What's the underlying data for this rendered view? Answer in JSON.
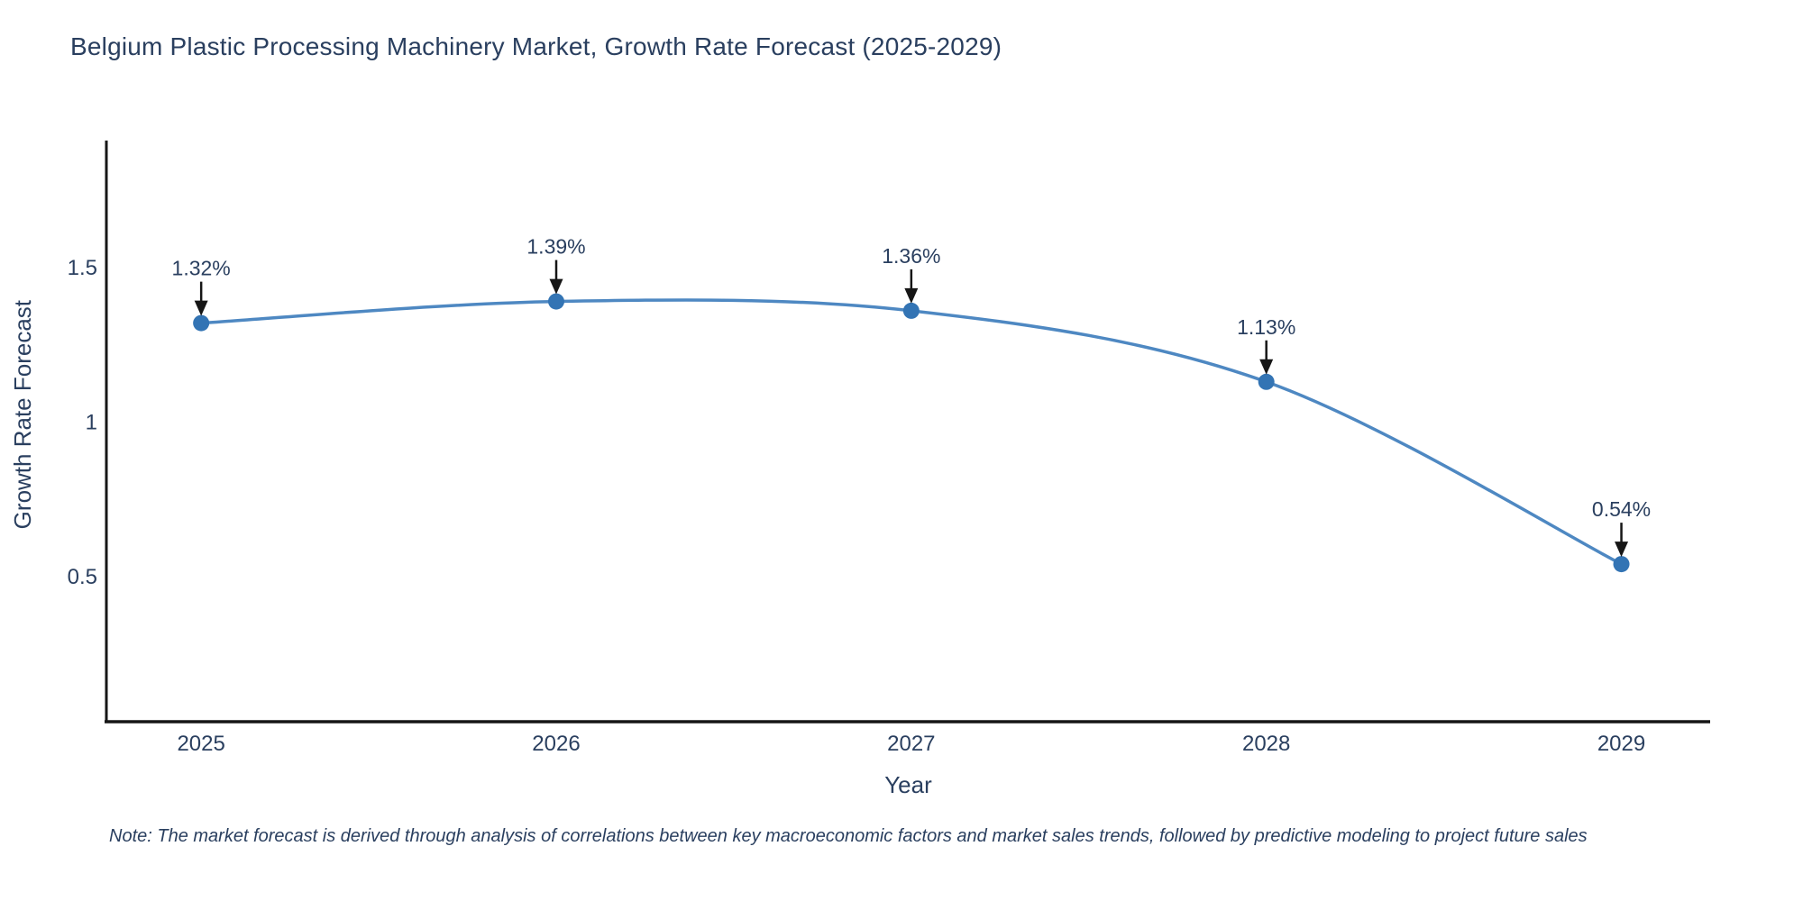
{
  "chart_data": {
    "type": "line",
    "title": "Belgium Plastic Processing Machinery Market, Growth Rate Forecast (2025-2029)",
    "xlabel": "Year",
    "ylabel": "Growth Rate Forecast",
    "x": [
      2025,
      2026,
      2027,
      2028,
      2029
    ],
    "values": [
      1.32,
      1.39,
      1.36,
      1.13,
      0.54
    ],
    "point_labels": [
      "1.32%",
      "1.39%",
      "1.36%",
      "1.13%",
      "0.54%"
    ],
    "x_tick_labels": [
      "2025",
      "2026",
      "2027",
      "2028",
      "2029"
    ],
    "y_ticks": [
      1.5,
      1.0,
      0.5
    ],
    "y_tick_labels": [
      "1.5",
      "1",
      "0.5"
    ],
    "xlim": [
      2024.733,
      2029.25
    ],
    "ylim": [
      0.03,
      1.905
    ],
    "line_shape": "spline",
    "grid": false,
    "legend_position": "none",
    "colors": {
      "line": "#4e88c2",
      "marker": "#3374b4",
      "axis": "#161616",
      "arrow": "#161616",
      "text": "#2a3f5f",
      "background": "#ffffff"
    },
    "note": "Note: The market forecast is derived through analysis of correlations between key macroeconomic factors and market sales trends, followed by predictive modeling to project future sales"
  }
}
